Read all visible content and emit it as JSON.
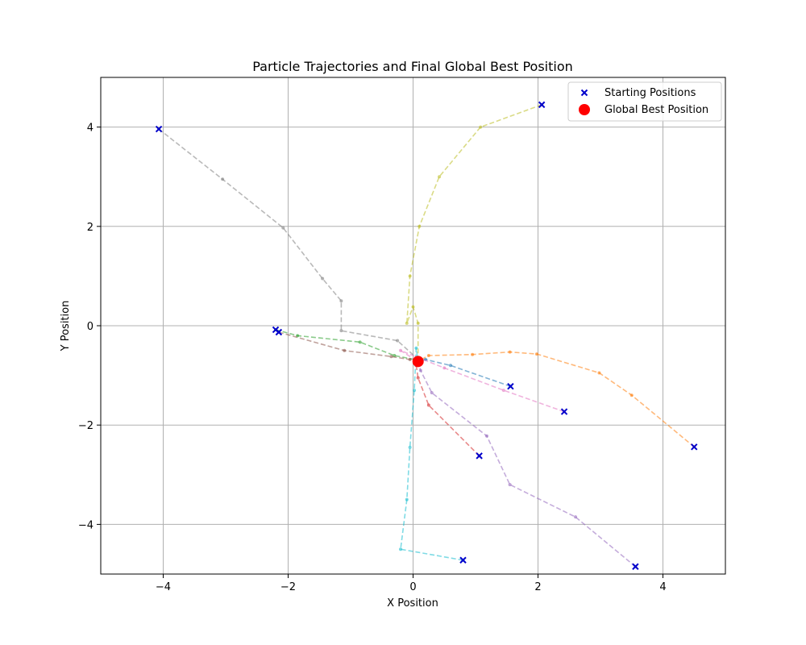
{
  "chart_data": {
    "type": "scatter",
    "title": "Particle Trajectories and Final Global Best Position",
    "xlabel": "X Position",
    "ylabel": "Y Position",
    "xlim": [
      -5,
      5
    ],
    "ylim": [
      -5,
      5
    ],
    "xticks": [
      -4,
      -2,
      0,
      2,
      4
    ],
    "yticks": [
      -4,
      -2,
      0,
      2,
      4
    ],
    "xtick_labels": [
      "−4",
      "−2",
      "0",
      "2",
      "4"
    ],
    "ytick_labels": [
      "−4",
      "−2",
      "0",
      "2",
      "4"
    ],
    "grid": true,
    "legend_position": "top-right",
    "legend": {
      "start_label": "Starting Positions",
      "best_label": "Global Best Position"
    },
    "colors": {
      "start_marker": "#0000cc",
      "best_marker": "#ff0000"
    },
    "trajectories": [
      {
        "color": "#1f77b4",
        "points": [
          [
            1.56,
            -1.22
          ],
          [
            0.6,
            -0.8
          ],
          [
            0.2,
            -0.68
          ],
          [
            0.1,
            -0.7
          ]
        ]
      },
      {
        "color": "#ff7f0e",
        "points": [
          [
            4.5,
            -2.44
          ],
          [
            3.5,
            -1.4
          ],
          [
            2.98,
            -0.95
          ],
          [
            1.98,
            -0.57
          ],
          [
            1.55,
            -0.53
          ],
          [
            0.95,
            -0.58
          ],
          [
            0.25,
            -0.6
          ],
          [
            0.1,
            -0.7
          ]
        ]
      },
      {
        "color": "#2ca02c",
        "points": [
          [
            -2.2,
            -0.08
          ],
          [
            -1.85,
            -0.2
          ],
          [
            -0.85,
            -0.33
          ],
          [
            -0.3,
            -0.6
          ],
          [
            0.1,
            -0.7
          ]
        ]
      },
      {
        "color": "#d62728",
        "points": [
          [
            1.06,
            -2.62
          ],
          [
            0.25,
            -1.6
          ],
          [
            0.08,
            -1.05
          ],
          [
            0.05,
            -0.8
          ],
          [
            0.08,
            -0.72
          ]
        ]
      },
      {
        "color": "#9467bd",
        "points": [
          [
            3.56,
            -4.85
          ],
          [
            2.6,
            -3.85
          ],
          [
            1.55,
            -3.2
          ],
          [
            1.18,
            -2.22
          ],
          [
            0.3,
            -1.35
          ],
          [
            0.12,
            -0.9
          ],
          [
            0.08,
            -0.72
          ]
        ]
      },
      {
        "color": "#8c564b",
        "points": [
          [
            -2.15,
            -0.13
          ],
          [
            -1.1,
            -0.5
          ],
          [
            -0.35,
            -0.62
          ],
          [
            -0.05,
            -0.68
          ],
          [
            0.08,
            -0.72
          ]
        ]
      },
      {
        "color": "#e377c2",
        "points": [
          [
            2.42,
            -1.73
          ],
          [
            1.45,
            -1.3
          ],
          [
            0.5,
            -0.85
          ],
          [
            -0.2,
            -0.5
          ],
          [
            0.08,
            -0.72
          ]
        ]
      },
      {
        "color": "#7f7f7f",
        "points": [
          [
            -4.07,
            3.96
          ],
          [
            -3.05,
            2.95
          ],
          [
            -2.08,
            1.97
          ],
          [
            -1.45,
            0.95
          ],
          [
            -1.15,
            0.5
          ],
          [
            -1.15,
            -0.1
          ],
          [
            -0.25,
            -0.3
          ],
          [
            0.1,
            -0.7
          ]
        ]
      },
      {
        "color": "#bcbd22",
        "points": [
          [
            2.06,
            4.45
          ],
          [
            1.08,
            4.0
          ],
          [
            0.42,
            3.0
          ],
          [
            0.1,
            2.0
          ],
          [
            -0.05,
            1.0
          ],
          [
            -0.1,
            0.05
          ],
          [
            0.0,
            0.38
          ],
          [
            0.08,
            0.05
          ],
          [
            0.08,
            -0.72
          ]
        ]
      },
      {
        "color": "#17becf",
        "points": [
          [
            0.8,
            -4.72
          ],
          [
            -0.2,
            -4.5
          ],
          [
            -0.1,
            -3.5
          ],
          [
            -0.05,
            -2.45
          ],
          [
            0.02,
            -1.3
          ],
          [
            0.05,
            -0.45
          ],
          [
            0.08,
            -0.72
          ]
        ]
      }
    ],
    "start_positions": [
      [
        1.56,
        -1.22
      ],
      [
        4.5,
        -2.44
      ],
      [
        -2.2,
        -0.08
      ],
      [
        1.06,
        -2.62
      ],
      [
        3.56,
        -4.85
      ],
      [
        -2.15,
        -0.13
      ],
      [
        2.42,
        -1.73
      ],
      [
        -4.07,
        3.96
      ],
      [
        2.06,
        4.45
      ],
      [
        0.8,
        -4.72
      ]
    ],
    "global_best": [
      0.08,
      -0.72
    ]
  }
}
